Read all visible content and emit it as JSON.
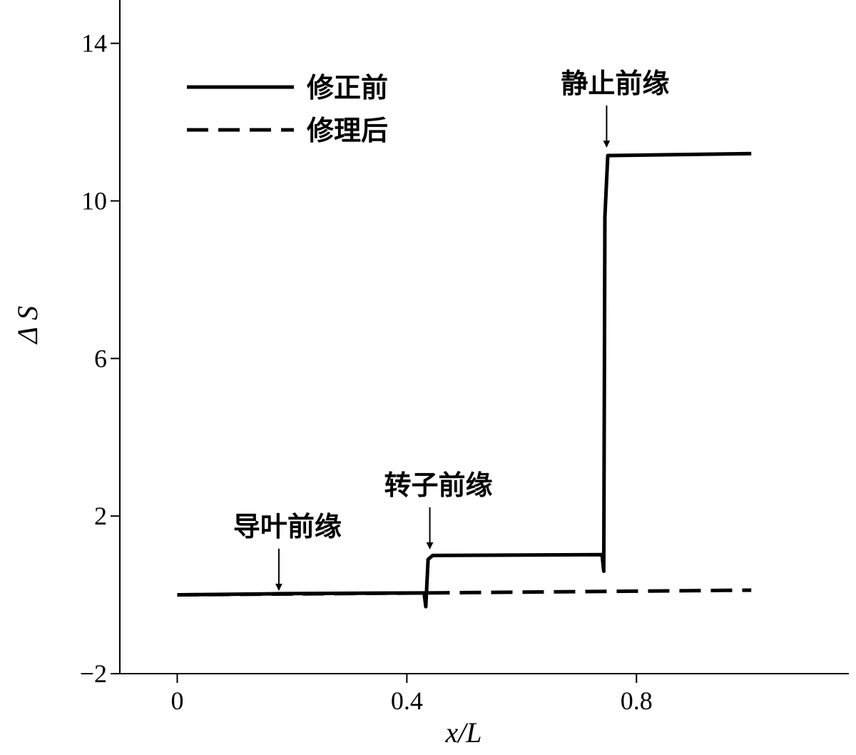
{
  "chart_data": {
    "type": "line",
    "x_label": "x/L",
    "y_label": "Δ S",
    "xlim": [
      -0.1,
      1.17
    ],
    "ylim": [
      -2,
      15.1
    ],
    "xticks": [
      0,
      0.4,
      0.8
    ],
    "yticks": [
      {
        "value": -2,
        "label": "−2"
      },
      2,
      6,
      10,
      14
    ],
    "legend": "upper left",
    "series": [
      {
        "name": "修正前",
        "color": "#000000",
        "linestyle": "solid",
        "x": [
          0,
          0.18,
          0.43,
          0.433,
          0.437,
          0.445,
          0.74,
          0.743,
          0.745,
          0.75,
          1.0
        ],
        "values": [
          0,
          0.03,
          0.05,
          -0.3,
          0.9,
          1.0,
          1.02,
          0.6,
          9.6,
          11.15,
          11.2
        ]
      },
      {
        "name": "修理后",
        "color": "#000000",
        "linestyle": "dashed",
        "x": [
          0,
          0.44,
          1.0
        ],
        "values": [
          0,
          0.05,
          0.12
        ]
      }
    ],
    "annotations": [
      {
        "text": "导叶前缘",
        "x": 0.177,
        "y": 0.05
      },
      {
        "text": "转子前缘",
        "x": 0.44,
        "y": 1.1
      },
      {
        "text": "静止前缘",
        "x": 0.748,
        "y": 11.3
      }
    ]
  }
}
